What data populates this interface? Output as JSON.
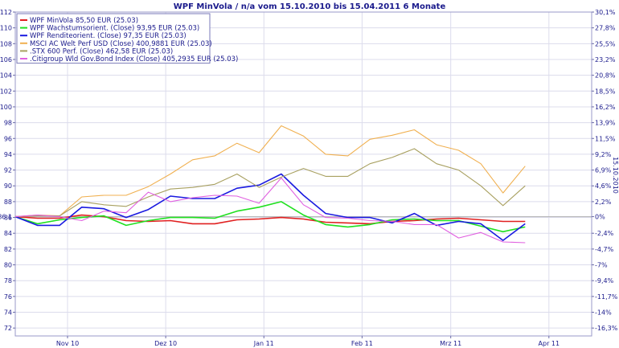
{
  "chart_data": {
    "type": "line",
    "title": "WPF MinVola / n/a vom 15.10.2010 bis 15.04.2011 6 Monate",
    "right_axis_side_label": "15.10.2010",
    "x_tick_labels": [
      "Nov 10",
      "Dez 10",
      "Jan 11",
      "Feb 11",
      "Mrz 11",
      "Apr 11"
    ],
    "x_tick_positions": [
      16.5,
      47.5,
      78.5,
      109.5,
      137.5,
      168.5
    ],
    "x_range": [
      0,
      182
    ],
    "ylim": [
      71,
      112
    ],
    "y_ticks": [
      72,
      74,
      76,
      78,
      80,
      82,
      84,
      86,
      88,
      90,
      92,
      94,
      96,
      98,
      100,
      102,
      104,
      106,
      108,
      110,
      112
    ],
    "right_ticks": [
      {
        "label": "30,1%",
        "value": 112
      },
      {
        "label": "27,8%",
        "value": 110
      },
      {
        "label": "25,5%",
        "value": 108
      },
      {
        "label": "23,2%",
        "value": 106
      },
      {
        "label": "20,8%",
        "value": 104
      },
      {
        "label": "18,5%",
        "value": 102
      },
      {
        "label": "16,2%",
        "value": 100
      },
      {
        "label": "13,9%",
        "value": 98
      },
      {
        "label": "11,5%",
        "value": 96
      },
      {
        "label": "9,2%",
        "value": 94
      },
      {
        "label": "6,9%",
        "value": 92
      },
      {
        "label": "4,6%",
        "value": 90
      },
      {
        "label": "2,2%",
        "value": 88
      },
      {
        "label": "0%",
        "value": 86.1
      },
      {
        "label": "-2,4%",
        "value": 84
      },
      {
        "label": "-4,7%",
        "value": 82
      },
      {
        "label": "-7%",
        "value": 80
      },
      {
        "label": "-9,4%",
        "value": 78
      },
      {
        "label": "-11,7%",
        "value": 76
      },
      {
        "label": "-14%",
        "value": 74
      },
      {
        "label": "-16,3%",
        "value": 72
      }
    ],
    "baseline": {
      "value": 86.1,
      "label": "86,1"
    },
    "grid": true,
    "legend_position": "top-left",
    "series": [
      {
        "name": "WPF MinVola 85,50 EUR (25.03)",
        "color": "#e02020",
        "x": [
          0,
          7,
          14,
          21,
          28,
          35,
          42,
          49,
          56,
          63,
          70,
          77,
          84,
          91,
          98,
          105,
          112,
          119,
          126,
          133,
          140,
          147,
          154,
          161
        ],
        "y": [
          86.1,
          85.9,
          85.9,
          86.3,
          86.1,
          85.6,
          85.5,
          85.6,
          85.2,
          85.2,
          85.7,
          85.8,
          86.0,
          85.8,
          85.4,
          85.3,
          85.2,
          85.5,
          85.6,
          85.8,
          85.9,
          85.7,
          85.5,
          85.5
        ]
      },
      {
        "name": "WPF Wachstumsorient. (Close) 93,95 EUR (25.03)",
        "color": "#20e020",
        "x": [
          0,
          7,
          14,
          21,
          28,
          35,
          42,
          49,
          56,
          63,
          70,
          77,
          84,
          91,
          98,
          105,
          112,
          119,
          126,
          133,
          140,
          147,
          154,
          161
        ],
        "y": [
          86.1,
          85.2,
          85.7,
          86.0,
          86.2,
          85.0,
          85.6,
          86.0,
          86.0,
          85.9,
          86.8,
          87.3,
          88.0,
          86.3,
          85.1,
          84.8,
          85.1,
          85.7,
          85.8,
          85.6,
          85.6,
          84.9,
          84.2,
          84.8
        ]
      },
      {
        "name": "WPF Renditeorient. (Close) 97,35 EUR (25.03)",
        "color": "#1a1ae0",
        "x": [
          0,
          7,
          14,
          21,
          28,
          35,
          42,
          49,
          56,
          63,
          70,
          77,
          84,
          91,
          98,
          105,
          112,
          119,
          126,
          133,
          140,
          147,
          154,
          161
        ],
        "y": [
          86.1,
          85.0,
          85.0,
          87.3,
          87.1,
          86.0,
          87.0,
          88.7,
          88.4,
          88.4,
          89.7,
          90.1,
          91.5,
          88.8,
          86.5,
          86.0,
          86.0,
          85.3,
          86.5,
          85.0,
          85.5,
          85.2,
          83.1,
          85.2
        ]
      },
      {
        "name": "MSCI AC Welt Perf USD (Close) 400,9881 EUR (25.03)",
        "color": "#f0b050",
        "x": [
          0,
          7,
          14,
          21,
          28,
          35,
          42,
          49,
          56,
          63,
          70,
          77,
          84,
          91,
          98,
          105,
          112,
          119,
          126,
          133,
          140,
          147,
          154,
          161
        ],
        "y": [
          86.1,
          86.3,
          86.2,
          88.6,
          88.8,
          88.8,
          89.9,
          91.5,
          93.3,
          93.8,
          95.4,
          94.2,
          97.6,
          96.3,
          94.0,
          93.8,
          95.9,
          96.4,
          97.1,
          95.2,
          94.5,
          92.8,
          89.1,
          92.5
        ]
      },
      {
        "name": ".STX 600 Perf. (Close) 462,58 EUR (25.03)",
        "color": "#a8a060",
        "x": [
          0,
          7,
          14,
          21,
          28,
          35,
          42,
          49,
          56,
          63,
          70,
          77,
          84,
          91,
          98,
          105,
          112,
          119,
          126,
          133,
          140,
          147,
          154,
          161
        ],
        "y": [
          86.1,
          86.2,
          86.2,
          88.0,
          87.6,
          87.4,
          88.6,
          89.6,
          89.8,
          90.2,
          91.5,
          89.8,
          91.1,
          92.2,
          91.2,
          91.2,
          92.8,
          93.6,
          94.7,
          92.8,
          92.0,
          90.0,
          87.5,
          90.0
        ]
      },
      {
        "name": ".Citigroup Wld Gov.Bond Index (Close) 405,2935 EUR (25.03)",
        "color": "#e060e0",
        "x": [
          0,
          7,
          14,
          21,
          28,
          35,
          42,
          49,
          56,
          63,
          70,
          77,
          84,
          91,
          98,
          105,
          112,
          119,
          126,
          133,
          140,
          147,
          154,
          161
        ],
        "y": [
          86.1,
          86.3,
          86.1,
          85.6,
          86.8,
          86.6,
          89.2,
          88.0,
          88.5,
          88.8,
          88.7,
          87.8,
          91.0,
          87.6,
          86.0,
          85.9,
          85.6,
          85.5,
          85.1,
          85.1,
          83.4,
          84.1,
          82.9,
          82.8
        ]
      }
    ]
  }
}
